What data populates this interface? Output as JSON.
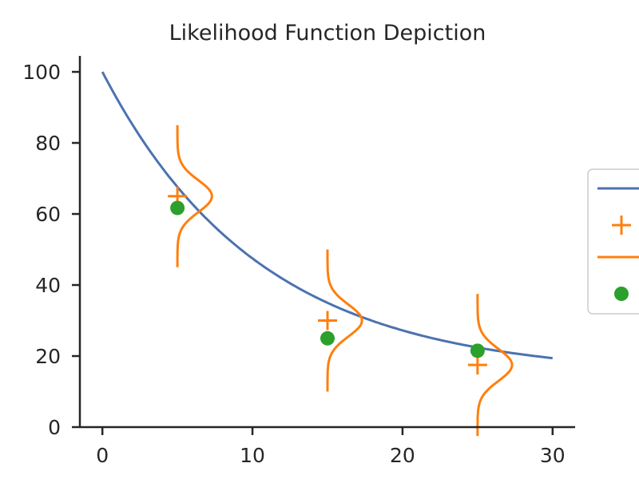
{
  "chart_data": {
    "type": "line",
    "title": "Likelihood Function Depiction",
    "xlabel": "",
    "ylabel": "",
    "xlim": [
      -1.5,
      31.5
    ],
    "ylim": [
      0,
      104.5
    ],
    "xticks": [
      0,
      10,
      20,
      30
    ],
    "yticks": [
      0,
      20,
      40,
      60,
      80,
      100
    ],
    "grid": false,
    "legend": {
      "placement": "right, partially outside",
      "entries": [
        {
          "marker": "line",
          "color": "#4c72b0",
          "label": ""
        },
        {
          "marker": "plus",
          "color": "#ff7f0e",
          "label": ""
        },
        {
          "marker": "line",
          "color": "#ff7f0e",
          "label": ""
        },
        {
          "marker": "dot",
          "color": "#2ca02c",
          "label": ""
        }
      ]
    },
    "series": [
      {
        "kind": "curve",
        "color": "#4c72b0",
        "x": [
          0,
          2,
          4,
          6,
          8,
          10,
          12,
          14,
          16,
          18,
          20,
          22,
          24,
          26,
          28,
          30
        ],
        "y": [
          100,
          87.9,
          77.8,
          69.4,
          62.2,
          56.2,
          51.1,
          46.9,
          43.2,
          40.0,
          27.2,
          23.8,
          21.0,
          18.6,
          16.5,
          14.5
        ]
      },
      {
        "kind": "plus",
        "color": "#ff7f0e",
        "x": [
          5,
          15,
          25
        ],
        "y": [
          65,
          30,
          17.5
        ]
      },
      {
        "kind": "gaussian",
        "color": "#ff7f0e",
        "centers_x": [
          5,
          15,
          25
        ],
        "means_y": [
          65,
          30,
          17.5
        ],
        "sigma": 4.5,
        "half_width_y": 20,
        "peak_dx": 2.3
      },
      {
        "kind": "dot",
        "color": "#2ca02c",
        "x": [
          5,
          15,
          25
        ],
        "y": [
          61.7,
          25,
          21.5
        ]
      }
    ]
  }
}
